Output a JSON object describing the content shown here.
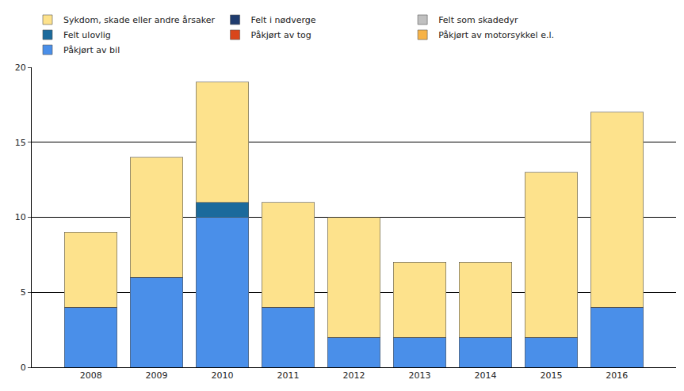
{
  "chart_data": {
    "type": "bar",
    "stacked": true,
    "grid": true,
    "legend": "top",
    "categories": [
      "2008",
      "2009",
      "2010",
      "2011",
      "2012",
      "2013",
      "2014",
      "2015",
      "2016"
    ],
    "ylim": [
      0,
      20
    ],
    "yticks": [
      0,
      5,
      10,
      15,
      20
    ],
    "series": [
      {
        "name": "Påkjørt av bil",
        "color": "#4a8fe9",
        "values": [
          4,
          6,
          10,
          4,
          2,
          2,
          2,
          2,
          4
        ]
      },
      {
        "name": "Påkjørt av motorsykkel e.l.",
        "color": "#f7b347",
        "values": [
          0,
          0,
          0,
          0,
          0,
          0,
          0,
          0,
          0
        ]
      },
      {
        "name": "Påkjørt av tog",
        "color": "#d9461b",
        "values": [
          0,
          0,
          0,
          0,
          0,
          0,
          0,
          0,
          0
        ]
      },
      {
        "name": "Felt ulovlig",
        "color": "#1b6a9c",
        "values": [
          0,
          0,
          1,
          0,
          0,
          0,
          0,
          0,
          0
        ]
      },
      {
        "name": "Felt som skadedyr",
        "color": "#c0c0c0",
        "values": [
          0,
          0,
          0,
          0,
          0,
          0,
          0,
          0,
          0
        ]
      },
      {
        "name": "Felt i nødverge",
        "color": "#1f3c6e",
        "values": [
          0,
          0,
          0,
          0,
          0,
          0,
          0,
          0,
          0
        ]
      },
      {
        "name": "Sykdom, skade eller andre årsaker",
        "color": "#fde28c",
        "values": [
          5,
          8,
          8,
          7,
          8,
          5,
          5,
          11,
          13
        ]
      }
    ]
  }
}
